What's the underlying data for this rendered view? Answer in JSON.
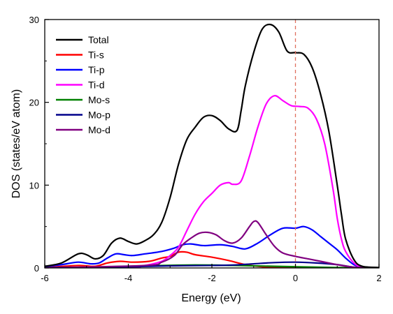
{
  "chart_data": {
    "type": "line",
    "title": "",
    "xlabel": "Energy (eV)",
    "ylabel": "DOS (states/eV atom)",
    "xlim": [
      -6,
      2
    ],
    "ylim": [
      0,
      30
    ],
    "x_ticks": [
      -6,
      -4,
      -2,
      0,
      2
    ],
    "x_tick_labels": [
      "-6",
      "-4",
      "-2",
      "0",
      "2"
    ],
    "y_ticks": [
      0,
      10,
      20,
      30
    ],
    "y_tick_labels": [
      "0",
      "10",
      "20",
      "30"
    ],
    "grid": false,
    "legend_position": "top-left",
    "fermi_level": {
      "x": 0,
      "color": "#e07060",
      "style": "dashed"
    },
    "series": [
      {
        "name": "Total",
        "color": "#000000",
        "points": [
          [
            -6,
            0.2
          ],
          [
            -5.6,
            0.6
          ],
          [
            -5.2,
            1.7
          ],
          [
            -5.0,
            1.6
          ],
          [
            -4.8,
            1.1
          ],
          [
            -4.6,
            1.5
          ],
          [
            -4.4,
            3.0
          ],
          [
            -4.2,
            3.6
          ],
          [
            -4.0,
            3.2
          ],
          [
            -3.8,
            2.9
          ],
          [
            -3.6,
            3.3
          ],
          [
            -3.4,
            4.0
          ],
          [
            -3.2,
            5.5
          ],
          [
            -3.0,
            8.5
          ],
          [
            -2.8,
            12.5
          ],
          [
            -2.6,
            15.5
          ],
          [
            -2.4,
            17.0
          ],
          [
            -2.2,
            18.2
          ],
          [
            -2.0,
            18.4
          ],
          [
            -1.8,
            17.8
          ],
          [
            -1.6,
            16.8
          ],
          [
            -1.4,
            16.6
          ],
          [
            -1.3,
            19.0
          ],
          [
            -1.2,
            22.0
          ],
          [
            -1.0,
            26.0
          ],
          [
            -0.8,
            28.8
          ],
          [
            -0.6,
            29.4
          ],
          [
            -0.4,
            28.5
          ],
          [
            -0.2,
            26.2
          ],
          [
            0.0,
            26.0
          ],
          [
            0.2,
            25.8
          ],
          [
            0.4,
            24.2
          ],
          [
            0.6,
            21.0
          ],
          [
            0.8,
            16.5
          ],
          [
            1.0,
            10.0
          ],
          [
            1.1,
            6.5
          ],
          [
            1.2,
            3.5
          ],
          [
            1.4,
            1.0
          ],
          [
            1.6,
            0.2
          ],
          [
            2.0,
            0.05
          ]
        ]
      },
      {
        "name": "Ti-s",
        "color": "#ff0000",
        "points": [
          [
            -6,
            0.05
          ],
          [
            -5.2,
            0.3
          ],
          [
            -4.8,
            0.2
          ],
          [
            -4.5,
            0.6
          ],
          [
            -4.2,
            0.8
          ],
          [
            -3.9,
            0.7
          ],
          [
            -3.5,
            0.8
          ],
          [
            -3.2,
            1.2
          ],
          [
            -3.0,
            1.4
          ],
          [
            -2.8,
            1.9
          ],
          [
            -2.6,
            1.9
          ],
          [
            -2.4,
            1.6
          ],
          [
            -2.0,
            1.3
          ],
          [
            -1.6,
            0.9
          ],
          [
            -1.2,
            0.4
          ],
          [
            -0.8,
            0.15
          ],
          [
            -0.4,
            0.05
          ],
          [
            2.0,
            0.0
          ]
        ]
      },
      {
        "name": "Ti-p",
        "color": "#0000ff",
        "points": [
          [
            -6,
            0.2
          ],
          [
            -5.6,
            0.4
          ],
          [
            -5.2,
            0.7
          ],
          [
            -4.9,
            0.5
          ],
          [
            -4.7,
            0.6
          ],
          [
            -4.5,
            1.2
          ],
          [
            -4.3,
            1.7
          ],
          [
            -4.1,
            1.6
          ],
          [
            -3.9,
            1.5
          ],
          [
            -3.6,
            1.7
          ],
          [
            -3.2,
            2.0
          ],
          [
            -2.9,
            2.4
          ],
          [
            -2.7,
            2.8
          ],
          [
            -2.5,
            2.9
          ],
          [
            -2.2,
            2.7
          ],
          [
            -1.8,
            2.8
          ],
          [
            -1.5,
            2.6
          ],
          [
            -1.2,
            2.3
          ],
          [
            -0.9,
            3.0
          ],
          [
            -0.6,
            4.0
          ],
          [
            -0.3,
            4.8
          ],
          [
            0.0,
            4.8
          ],
          [
            0.2,
            5.0
          ],
          [
            0.4,
            4.6
          ],
          [
            0.6,
            3.8
          ],
          [
            0.8,
            3.0
          ],
          [
            1.0,
            2.2
          ],
          [
            1.2,
            1.2
          ],
          [
            1.4,
            0.4
          ],
          [
            1.6,
            0.1
          ],
          [
            2.0,
            0.0
          ]
        ]
      },
      {
        "name": "Ti-d",
        "color": "#ff00ff",
        "points": [
          [
            -6,
            0.0
          ],
          [
            -4.0,
            0.05
          ],
          [
            -3.6,
            0.3
          ],
          [
            -3.2,
            0.8
          ],
          [
            -3.0,
            1.5
          ],
          [
            -2.8,
            2.5
          ],
          [
            -2.6,
            4.5
          ],
          [
            -2.4,
            6.5
          ],
          [
            -2.2,
            8.0
          ],
          [
            -2.0,
            9.0
          ],
          [
            -1.8,
            10.0
          ],
          [
            -1.6,
            10.3
          ],
          [
            -1.5,
            10.1
          ],
          [
            -1.3,
            10.5
          ],
          [
            -1.1,
            13.5
          ],
          [
            -0.9,
            17.0
          ],
          [
            -0.7,
            19.8
          ],
          [
            -0.5,
            20.8
          ],
          [
            -0.3,
            20.2
          ],
          [
            -0.1,
            19.6
          ],
          [
            0.1,
            19.5
          ],
          [
            0.3,
            19.3
          ],
          [
            0.5,
            18.0
          ],
          [
            0.7,
            15.0
          ],
          [
            0.9,
            9.5
          ],
          [
            1.0,
            6.0
          ],
          [
            1.1,
            3.5
          ],
          [
            1.2,
            2.0
          ],
          [
            1.4,
            0.6
          ],
          [
            1.6,
            0.1
          ],
          [
            2.0,
            0.0
          ]
        ]
      },
      {
        "name": "Mo-s",
        "color": "#008000",
        "points": [
          [
            -6,
            0.0
          ],
          [
            -5.0,
            0.1
          ],
          [
            -4.0,
            0.2
          ],
          [
            -3.2,
            0.3
          ],
          [
            -2.6,
            0.35
          ],
          [
            -2.0,
            0.35
          ],
          [
            -1.5,
            0.3
          ],
          [
            -1.0,
            0.25
          ],
          [
            -0.5,
            0.2
          ],
          [
            0.0,
            0.15
          ],
          [
            0.5,
            0.1
          ],
          [
            1.0,
            0.05
          ],
          [
            1.5,
            0.02
          ],
          [
            2.0,
            0.0
          ]
        ]
      },
      {
        "name": "Mo-p",
        "color": "#00008b",
        "points": [
          [
            -6,
            0.05
          ],
          [
            -5.0,
            0.1
          ],
          [
            -4.0,
            0.15
          ],
          [
            -3.0,
            0.25
          ],
          [
            -2.0,
            0.3
          ],
          [
            -1.5,
            0.35
          ],
          [
            -1.0,
            0.5
          ],
          [
            -0.5,
            0.65
          ],
          [
            0.0,
            0.7
          ],
          [
            0.5,
            0.6
          ],
          [
            1.0,
            0.4
          ],
          [
            1.4,
            0.1
          ],
          [
            2.0,
            0.0
          ]
        ]
      },
      {
        "name": "Mo-d",
        "color": "#800080",
        "points": [
          [
            -6,
            0.0
          ],
          [
            -3.6,
            0.3
          ],
          [
            -3.2,
            0.7
          ],
          [
            -2.9,
            1.5
          ],
          [
            -2.7,
            2.8
          ],
          [
            -2.5,
            3.6
          ],
          [
            -2.3,
            4.2
          ],
          [
            -2.1,
            4.3
          ],
          [
            -1.9,
            4.0
          ],
          [
            -1.7,
            3.3
          ],
          [
            -1.5,
            3.0
          ],
          [
            -1.3,
            3.6
          ],
          [
            -1.1,
            5.0
          ],
          [
            -1.0,
            5.6
          ],
          [
            -0.9,
            5.5
          ],
          [
            -0.7,
            4.0
          ],
          [
            -0.5,
            2.6
          ],
          [
            -0.3,
            1.8
          ],
          [
            0.0,
            1.4
          ],
          [
            0.3,
            1.1
          ],
          [
            0.6,
            0.8
          ],
          [
            1.0,
            0.4
          ],
          [
            1.4,
            0.1
          ],
          [
            2.0,
            0.0
          ]
        ]
      }
    ]
  }
}
